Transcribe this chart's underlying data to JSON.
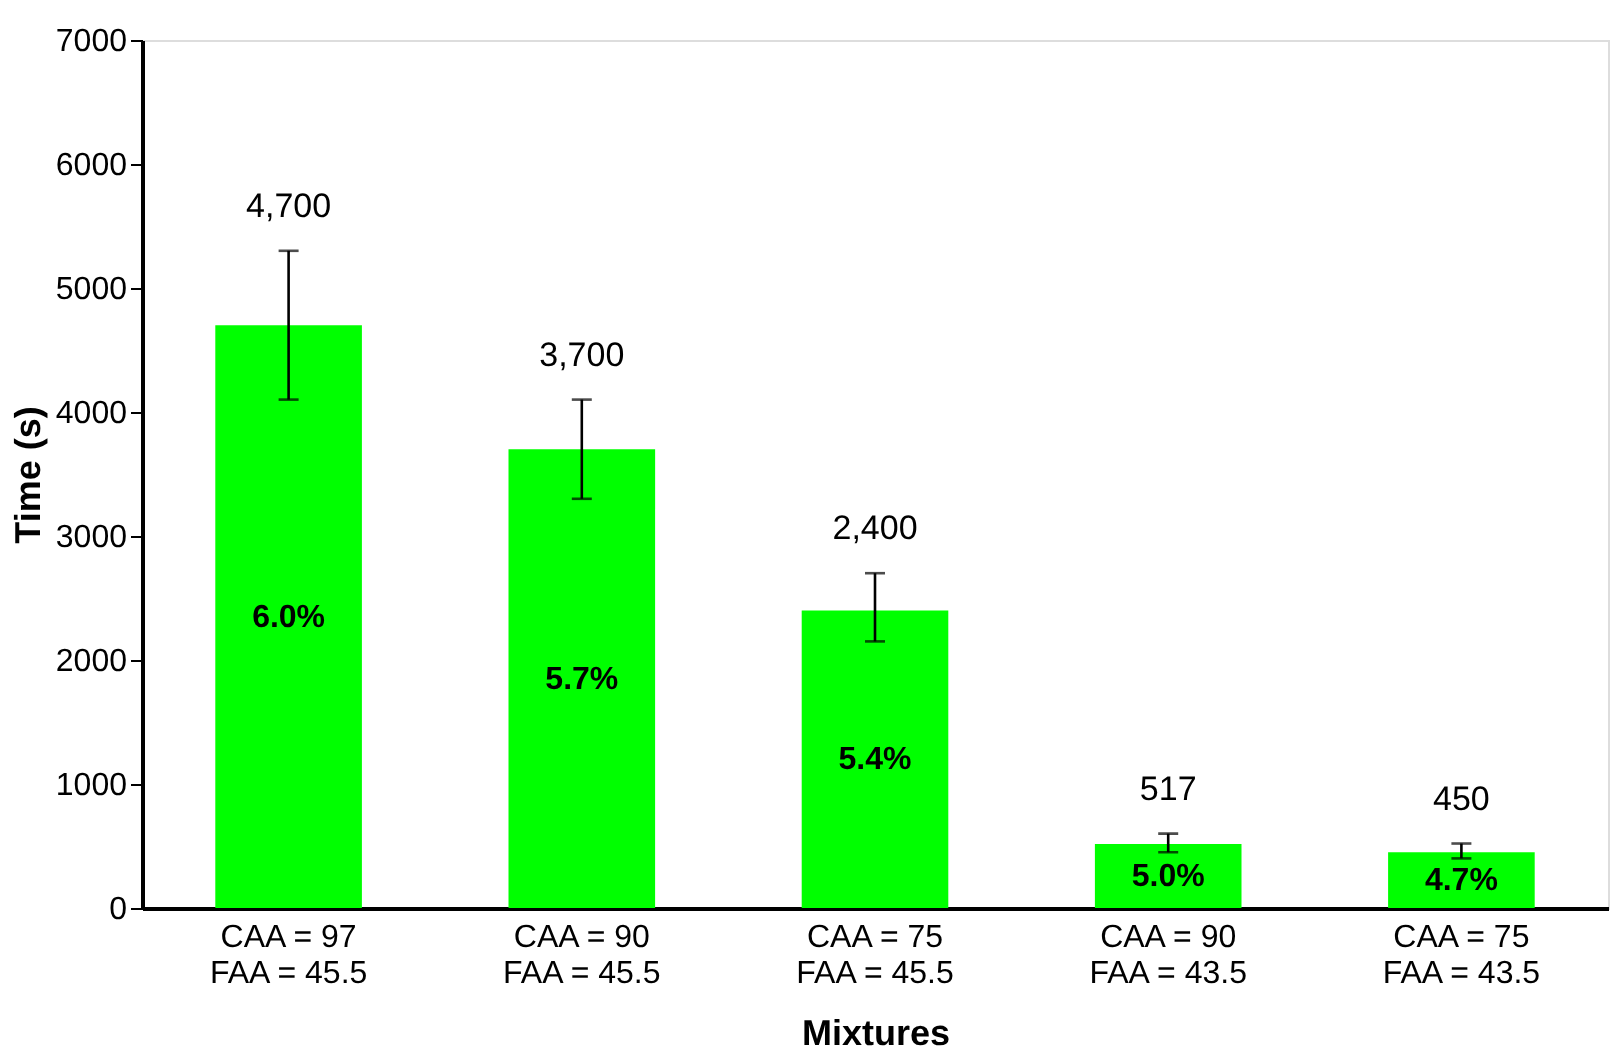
{
  "chart_data": {
    "type": "bar",
    "xlabel": "Mixtures",
    "ylabel": "Time (s)",
    "categories": [
      "CAA = 97\nFAA = 45.5",
      "CAA = 90\nFAA =  45.5",
      "CAA = 75\nFAA = 45.5",
      "CAA = 90\nFAA = 43.5",
      "CAA = 75\nFAA = 43.5"
    ],
    "values": [
      4700,
      3700,
      2400,
      517,
      450
    ],
    "value_labels": [
      "4,700",
      "3,700",
      "2,400",
      "517",
      "450"
    ],
    "errors": [
      [
        4100,
        5300
      ],
      [
        3300,
        4100
      ],
      [
        2150,
        2700
      ],
      [
        450,
        600
      ],
      [
        400,
        520
      ]
    ],
    "color": "#00ff00",
    "ylim": [
      0,
      7000
    ],
    "yticks": [
      0,
      1000,
      2000,
      3000,
      4000,
      5000,
      6000,
      7000
    ],
    "grid": false,
    "annotations": [
      "6.0%",
      "5.7%",
      "5.4%",
      "5.0%",
      "4.7%"
    ]
  }
}
